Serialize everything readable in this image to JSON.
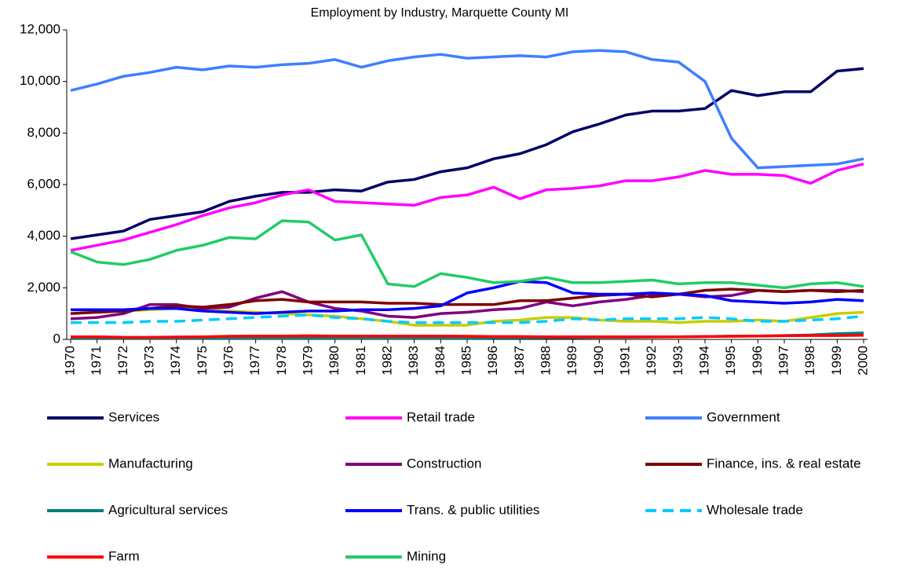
{
  "chart_data": {
    "type": "line",
    "title": "Employment by Industry, Marquette County MI",
    "categories": [
      "1970",
      "1971",
      "1972",
      "1973",
      "1974",
      "1975",
      "1976",
      "1977",
      "1978",
      "1979",
      "1980",
      "1981",
      "1982",
      "1983",
      "1984",
      "1985",
      "1986",
      "1987",
      "1988",
      "1989",
      "1990",
      "1991",
      "1992",
      "1993",
      "1994",
      "1995",
      "1996",
      "1997",
      "1998",
      "1999",
      "2000"
    ],
    "ylim": [
      0,
      12000
    ],
    "yticks": [
      0,
      {
        "value": 2000,
        "label": "2,000"
      },
      {
        "value": 4000,
        "label": "4,000"
      },
      {
        "value": 6000,
        "label": "6,000"
      },
      {
        "value": 8000,
        "label": "8,000"
      },
      {
        "value": 10000,
        "label": "10,000"
      },
      {
        "value": 12000,
        "label": "12,000"
      }
    ],
    "grid": false,
    "series": [
      {
        "name": "Services",
        "color": "#000066",
        "values": [
          3900,
          4050,
          4200,
          4650,
          4800,
          4950,
          5350,
          5550,
          5700,
          5700,
          5800,
          5750,
          6100,
          6200,
          6500,
          6650,
          7000,
          7200,
          7550,
          8050,
          8350,
          8700,
          8850,
          8850,
          8950,
          9650,
          9450,
          9600,
          9600,
          10400,
          10500
        ]
      },
      {
        "name": "Retail trade",
        "color": "#ff00ff",
        "values": [
          3450,
          3650,
          3850,
          4150,
          4450,
          4800,
          5100,
          5300,
          5600,
          5800,
          5350,
          5300,
          5250,
          5200,
          5500,
          5600,
          5900,
          5450,
          5800,
          5850,
          5950,
          6150,
          6150,
          6300,
          6550,
          6400,
          6400,
          6350,
          6050,
          6550,
          6800
        ]
      },
      {
        "name": "Government",
        "color": "#3f7fff",
        "values": [
          9650,
          9900,
          10200,
          10350,
          10550,
          10450,
          10600,
          10550,
          10650,
          10700,
          10850,
          10550,
          10800,
          10950,
          11050,
          10900,
          10950,
          11000,
          10950,
          11150,
          11200,
          11150,
          10850,
          10750,
          10000,
          7800,
          6650,
          6700,
          6750,
          6800,
          7000
        ]
      },
      {
        "name": "Manufacturing",
        "color": "#cccc00",
        "values": [
          1150,
          1100,
          1100,
          1150,
          1200,
          1150,
          1100,
          1050,
          1000,
          950,
          900,
          800,
          700,
          550,
          550,
          550,
          700,
          750,
          850,
          850,
          750,
          700,
          700,
          650,
          700,
          700,
          750,
          700,
          850,
          1000,
          1050
        ]
      },
      {
        "name": "Construction",
        "color": "#800080",
        "values": [
          800,
          850,
          1000,
          1350,
          1350,
          1200,
          1250,
          1600,
          1850,
          1450,
          1200,
          1100,
          900,
          850,
          1000,
          1050,
          1150,
          1200,
          1450,
          1300,
          1450,
          1550,
          1700,
          1750,
          1650,
          1700,
          1900,
          1850,
          1900,
          1900,
          1850
        ]
      },
      {
        "name": "Finance, ins. & real estate",
        "color": "#800000",
        "values": [
          1000,
          1050,
          1100,
          1200,
          1300,
          1250,
          1350,
          1500,
          1550,
          1450,
          1450,
          1450,
          1400,
          1400,
          1350,
          1350,
          1350,
          1500,
          1500,
          1600,
          1700,
          1750,
          1650,
          1750,
          1900,
          1950,
          1900,
          1850,
          1900,
          1850,
          1900
        ]
      },
      {
        "name": "Agricultural services",
        "color": "#008080",
        "values": [
          50,
          50,
          50,
          50,
          50,
          50,
          50,
          50,
          50,
          50,
          50,
          50,
          50,
          50,
          50,
          50,
          60,
          60,
          70,
          70,
          80,
          80,
          90,
          100,
          110,
          120,
          130,
          150,
          170,
          220,
          250
        ]
      },
      {
        "name": "Trans. & public utilities",
        "color": "#0000ff",
        "values": [
          1150,
          1150,
          1150,
          1200,
          1200,
          1100,
          1050,
          1000,
          1050,
          1100,
          1100,
          1150,
          1150,
          1200,
          1300,
          1800,
          2000,
          2250,
          2200,
          1800,
          1750,
          1750,
          1800,
          1750,
          1700,
          1500,
          1450,
          1400,
          1450,
          1550,
          1500
        ]
      },
      {
        "name": "Wholesale trade",
        "color": "#00ccff",
        "dash": true,
        "values": [
          650,
          650,
          650,
          700,
          700,
          750,
          800,
          850,
          900,
          950,
          850,
          800,
          700,
          650,
          650,
          650,
          650,
          650,
          700,
          800,
          750,
          800,
          800,
          800,
          850,
          800,
          700,
          700,
          750,
          800,
          900
        ]
      },
      {
        "name": "Farm",
        "color": "#ff0000",
        "values": [
          100,
          100,
          80,
          80,
          90,
          100,
          120,
          130,
          130,
          140,
          130,
          130,
          130,
          130,
          130,
          120,
          110,
          110,
          100,
          100,
          100,
          100,
          100,
          100,
          110,
          120,
          130,
          140,
          150,
          150,
          160
        ]
      },
      {
        "name": "Mining",
        "color": "#22cc66",
        "values": [
          3400,
          3000,
          2900,
          3100,
          3450,
          3650,
          3950,
          3900,
          4600,
          4550,
          3850,
          4050,
          2150,
          2050,
          2550,
          2400,
          2200,
          2250,
          2400,
          2200,
          2200,
          2250,
          2300,
          2150,
          2200,
          2200,
          2100,
          2000,
          2150,
          2200,
          2050
        ]
      }
    ]
  }
}
